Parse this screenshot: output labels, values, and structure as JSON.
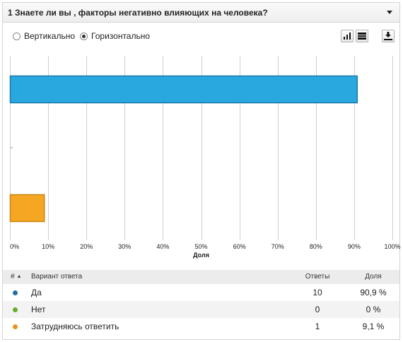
{
  "header": {
    "title": "1 Знаете ли вы , факторы негативно влияющих на человека?"
  },
  "toolbar": {
    "orientation_options": [
      "Вертикально",
      "Горизонтально"
    ],
    "selected_orientation": "Горизонтально"
  },
  "colors": {
    "bar_yes": "#29a8e0",
    "bar_unsure": "#f5a623",
    "dot_yes": "#1f6fa3",
    "dot_no": "#6aaa2a",
    "dot_unsure": "#e8951e"
  },
  "chart_data": {
    "type": "bar",
    "orientation": "horizontal",
    "categories": [
      "Да",
      "Нет",
      "Затрудняюсь ответить"
    ],
    "values": [
      90.9,
      0,
      9.1
    ],
    "xlabel": "Доля",
    "xlim": [
      0,
      100
    ],
    "x_ticks": [
      "0%",
      "10%",
      "20%",
      "30%",
      "40%",
      "50%",
      "60%",
      "70%",
      "80%",
      "90%",
      "100%"
    ],
    "grid": true,
    "legend": "none"
  },
  "table": {
    "columns": {
      "num": "#",
      "label": "Вариант ответа",
      "count": "Ответы",
      "share": "Доля"
    },
    "rows": [
      {
        "label": "Да",
        "count": "10",
        "share": "90,9 %"
      },
      {
        "label": "Нет",
        "count": "0",
        "share": "0 %"
      },
      {
        "label": "Затрудняюсь ответить",
        "count": "1",
        "share": "9,1 %"
      }
    ]
  }
}
